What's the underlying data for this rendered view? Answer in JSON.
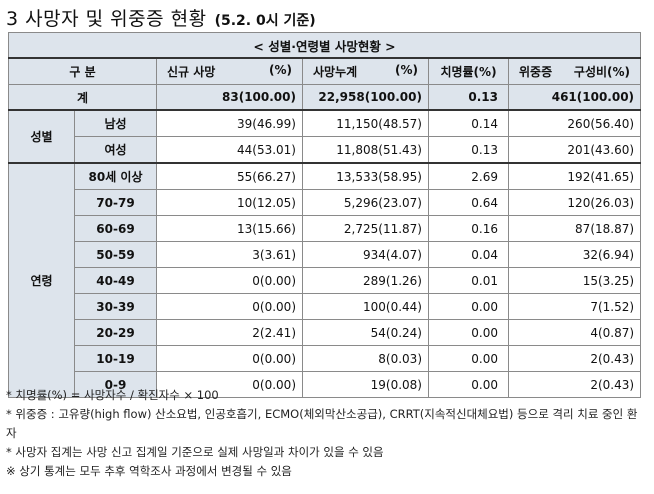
{
  "title": {
    "main": "3 사망자 및 위중증 현황",
    "sub": "(5.2. 0시 기준)"
  },
  "table": {
    "caption": "< 성별·연령별 사망현황 >",
    "headers": {
      "category": "구 분",
      "new_deaths": "신규 사망",
      "new_deaths_unit": "(%)",
      "cum_deaths": "사망누계",
      "cum_deaths_unit": "(%)",
      "fatality": "치명률(%)",
      "critical": "위중증",
      "critical_ratio": "구성비(%)"
    },
    "total": {
      "label": "계",
      "new": "83(100.00)",
      "cum": "22,958(100.00)",
      "fatality": "0.13",
      "critical": "461(100.00)"
    },
    "sex_group": "성별",
    "sex_rows": [
      {
        "label": "남성",
        "new": "39(46.99)",
        "cum": "11,150(48.57)",
        "fatality": "0.14",
        "critical": "260(56.40)"
      },
      {
        "label": "여성",
        "new": "44(53.01)",
        "cum": "11,808(51.43)",
        "fatality": "0.13",
        "critical": "201(43.60)"
      }
    ],
    "age_group": "연령",
    "age_rows": [
      {
        "label": "80세 이상",
        "new": "55(66.27)",
        "cum": "13,533(58.95)",
        "fatality": "2.69",
        "critical": "192(41.65)"
      },
      {
        "label": "70-79",
        "new": "10(12.05)",
        "cum": "5,296(23.07)",
        "fatality": "0.64",
        "critical": "120(26.03)"
      },
      {
        "label": "60-69",
        "new": "13(15.66)",
        "cum": "2,725(11.87)",
        "fatality": "0.16",
        "critical": "87(18.87)"
      },
      {
        "label": "50-59",
        "new": "3(3.61)",
        "cum": "934(4.07)",
        "fatality": "0.04",
        "critical": "32(6.94)"
      },
      {
        "label": "40-49",
        "new": "0(0.00)",
        "cum": "289(1.26)",
        "fatality": "0.01",
        "critical": "15(3.25)"
      },
      {
        "label": "30-39",
        "new": "0(0.00)",
        "cum": "100(0.44)",
        "fatality": "0.00",
        "critical": "7(1.52)"
      },
      {
        "label": "20-29",
        "new": "2(2.41)",
        "cum": "54(0.24)",
        "fatality": "0.00",
        "critical": "4(0.87)"
      },
      {
        "label": "10-19",
        "new": "0(0.00)",
        "cum": "8(0.03)",
        "fatality": "0.00",
        "critical": "2(0.43)"
      },
      {
        "label": "0-9",
        "new": "0(0.00)",
        "cum": "19(0.08)",
        "fatality": "0.00",
        "critical": "2(0.43)"
      }
    ]
  },
  "notes": [
    "* 치명률(%) = 사망자수 / 확진자수 × 100",
    "* 위중증 : 고유량(high flow) 산소요법, 인공호흡기, ECMO(체외막산소공급), CRRT(지속적신대체요법) 등으로 격리 치료 중인 환자",
    "* 사망자 집계는 사망 신고 집계일 기준으로 실제 사망일과 차이가 있을 수 있음",
    "※ 상기 통계는 모두 추후 역학조사 과정에서 변경될 수 있음"
  ]
}
